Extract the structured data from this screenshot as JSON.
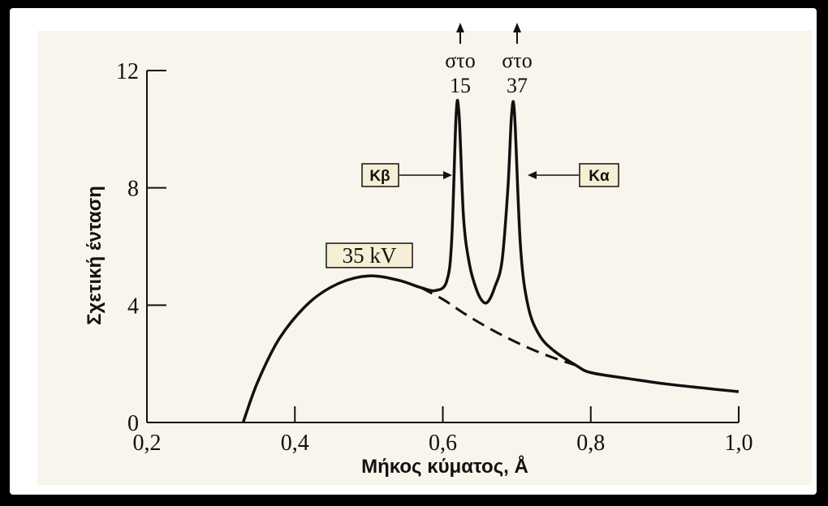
{
  "chart_data": {
    "type": "line",
    "xlabel": "Μήκος κύματος,  Å",
    "ylabel": "Σχετική ένταση",
    "xlim": [
      0.2,
      1.0
    ],
    "ylim": [
      0,
      12
    ],
    "x_ticks": [
      "0,2",
      "0,4",
      "0,6",
      "0,8",
      "1,0"
    ],
    "y_ticks": [
      "0",
      "4",
      "8",
      "12"
    ],
    "grid": false,
    "series": [
      {
        "style": "solid",
        "x": [
          0.33,
          0.35,
          0.38,
          0.42,
          0.46,
          0.5,
          0.54,
          0.57,
          0.59,
          0.605,
          0.612,
          0.618,
          0.622,
          0.628,
          0.636,
          0.646,
          0.655,
          0.662,
          0.67,
          0.68,
          0.688,
          0.693,
          0.697,
          0.705,
          0.715,
          0.73,
          0.75,
          0.78,
          0.8,
          0.85,
          0.9,
          0.95,
          1.0
        ],
        "y": [
          0.0,
          1.4,
          2.9,
          4.1,
          4.75,
          5.0,
          4.85,
          4.6,
          4.5,
          4.8,
          6.2,
          10.5,
          10.5,
          7.0,
          5.4,
          4.5,
          4.1,
          4.15,
          4.6,
          5.5,
          8.0,
          10.5,
          10.5,
          6.0,
          4.0,
          3.0,
          2.45,
          1.95,
          1.7,
          1.5,
          1.32,
          1.18,
          1.05
        ]
      },
      {
        "style": "dashed",
        "x": [
          0.57,
          0.6,
          0.63,
          0.66,
          0.69,
          0.72,
          0.75,
          0.78
        ],
        "y": [
          4.6,
          4.2,
          3.7,
          3.25,
          2.85,
          2.5,
          2.2,
          1.95
        ]
      }
    ],
    "annotations": {
      "voltage": "35 kV",
      "kb_label": "Kβ",
      "ka_label": "Kα",
      "kb_offscale_word": "στο",
      "kb_offscale_value": "15",
      "ka_offscale_word": "στο",
      "ka_offscale_value": "37"
    }
  }
}
